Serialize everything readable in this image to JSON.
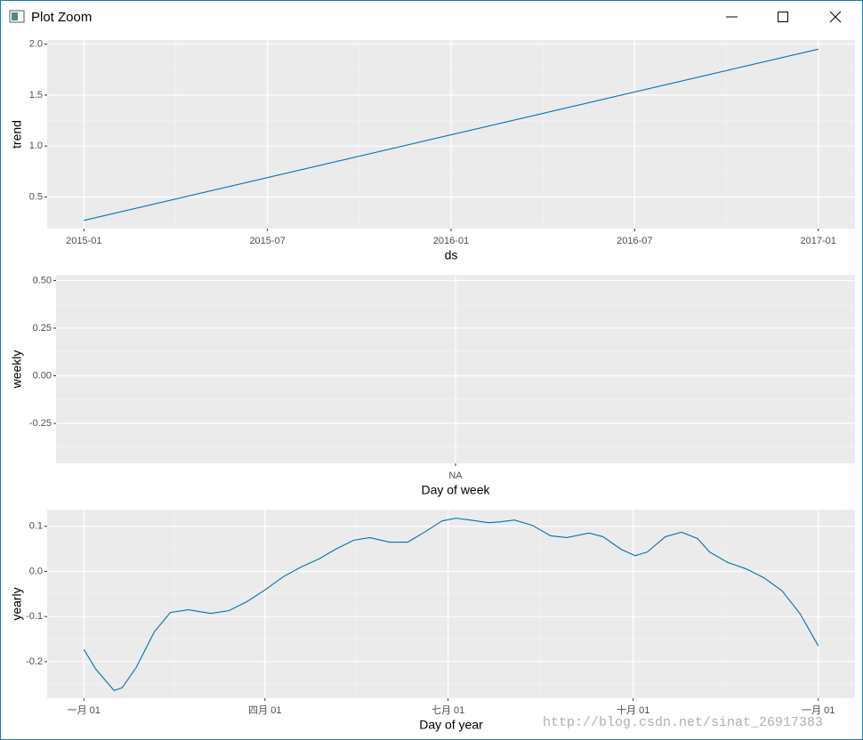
{
  "window": {
    "title": "Plot Zoom"
  },
  "watermark": "http://blog.csdn.net/sinat_26917383",
  "chart_data": [
    {
      "type": "line",
      "x_label": "ds",
      "y_label": "trend",
      "x": [
        "2015-01",
        "2017-01"
      ],
      "series": [
        {
          "color": "#0072b2",
          "values": [
            0.27,
            1.95
          ]
        }
      ],
      "xticks": [
        "2015-01",
        "2015-07",
        "2016-01",
        "2016-07",
        "2017-01"
      ],
      "ylim": [
        0.19,
        2.04
      ],
      "yticks": [
        {
          "value": 0.5,
          "label": "0.5"
        },
        {
          "value": 1,
          "label": "1.0"
        },
        {
          "value": 1.5,
          "label": "1.5"
        },
        {
          "value": 2,
          "label": "2.0"
        }
      ],
      "grid": true
    },
    {
      "type": "line",
      "x_label": "Day of week",
      "y_label": "weekly",
      "categories": [
        "NA"
      ],
      "ylim": [
        -0.46,
        0.53
      ],
      "yticks": [
        {
          "value": -0.25,
          "label": "-0.25"
        },
        {
          "value": 0,
          "label": "0.00"
        },
        {
          "value": 0.25,
          "label": "0.25"
        },
        {
          "value": 0.5,
          "label": "0.50"
        }
      ],
      "grid": true
    },
    {
      "type": "line",
      "x_label": "Day of year",
      "y_label": "yearly",
      "x": [
        0,
        6,
        15,
        19,
        26,
        35,
        43,
        52,
        63,
        72,
        81,
        90,
        99,
        108,
        117,
        125,
        134,
        142,
        152,
        161,
        170,
        178,
        185,
        192,
        201,
        207,
        214,
        223,
        232,
        240,
        251,
        258,
        267,
        274,
        280,
        289,
        297,
        305,
        311,
        320,
        329,
        338,
        347,
        356,
        365
      ],
      "series": [
        {
          "color": "#0072b2",
          "values": [
            -0.173,
            -0.217,
            -0.264,
            -0.258,
            -0.213,
            -0.134,
            -0.091,
            -0.085,
            -0.093,
            -0.087,
            -0.067,
            -0.041,
            -0.012,
            0.01,
            0.028,
            0.049,
            0.069,
            0.075,
            0.065,
            0.065,
            0.089,
            0.112,
            0.118,
            0.114,
            0.108,
            0.11,
            0.114,
            0.102,
            0.079,
            0.075,
            0.085,
            0.077,
            0.049,
            0.035,
            0.043,
            0.077,
            0.087,
            0.073,
            0.043,
            0.02,
            0.006,
            -0.014,
            -0.043,
            -0.094,
            -0.165
          ]
        }
      ],
      "xlim": [
        -18.25,
        383.25
      ],
      "xticks": [
        {
          "value": 0,
          "label": "一月 01"
        },
        {
          "value": 90,
          "label": "四月 01"
        },
        {
          "value": 181,
          "label": "七月 01"
        },
        {
          "value": 273,
          "label": "十月 01"
        },
        {
          "value": 365,
          "label": "一月 01"
        }
      ],
      "ylim": [
        -0.281,
        0.137
      ],
      "yticks": [
        {
          "value": -0.2,
          "label": "-0.2"
        },
        {
          "value": -0.1,
          "label": "-0.1"
        },
        {
          "value": 0,
          "label": "0.0"
        },
        {
          "value": 0.1,
          "label": "0.1"
        }
      ],
      "grid": true
    }
  ]
}
